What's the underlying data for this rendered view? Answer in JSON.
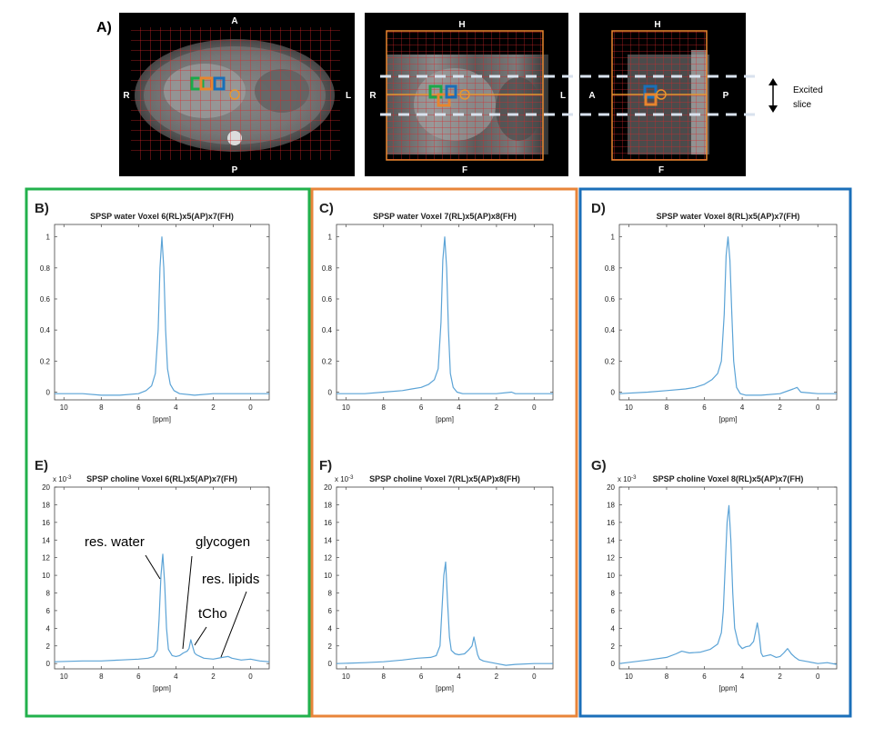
{
  "mri": {
    "panel_label": "A)",
    "axial": {
      "top": "A",
      "bottom": "P",
      "left": "R",
      "right": "L"
    },
    "coronal": {
      "top": "H",
      "bottom": "F",
      "left": "R",
      "right": "L"
    },
    "sagittal": {
      "top": "H",
      "bottom": "F",
      "left": "A",
      "right": "P"
    },
    "excited_slice_label_1": "Excited",
    "excited_slice_label_2": "slice",
    "voxel_colors": {
      "green": "#1aaa4a",
      "orange": "#e8852e",
      "blue": "#1a6fb8"
    }
  },
  "frame_colors": {
    "left": "#22b14c",
    "middle": "#e8853a",
    "right": "#1b6fb9"
  },
  "line_color": "#5ba3d6",
  "annotations": {
    "res_water": "res. water",
    "glycogen": "glycogen",
    "res_lipids": "res. lipids",
    "tcho": "tCho"
  },
  "chart_data": [
    {
      "panel": "B)",
      "type": "line",
      "title": "SPSP water Voxel 6(RL)x5(AP)x7(FH)",
      "xlabel": "[ppm]",
      "ylabel": "",
      "y_scale_note": "",
      "xlim": [
        10.5,
        -1
      ],
      "ylim": [
        -0.05,
        1.08
      ],
      "x_reversed": true,
      "xticks": [
        10,
        8,
        6,
        4,
        2,
        0
      ],
      "xtick_labels": [
        "10",
        "8",
        "6",
        "4",
        "2",
        "0"
      ],
      "yticks": [
        0,
        0.2,
        0.4,
        0.6,
        0.8,
        1
      ],
      "ytick_labels": [
        "0",
        "0.2",
        "0.4",
        "0.6",
        "0.8",
        "1"
      ],
      "series": [
        {
          "x": [
            10.5,
            9,
            8,
            7,
            6,
            5.6,
            5.3,
            5.1,
            4.95,
            4.85,
            4.75,
            4.65,
            4.55,
            4.45,
            4.3,
            4.1,
            3.8,
            3,
            2,
            1,
            0,
            -1
          ],
          "y": [
            -0.01,
            -0.01,
            -0.02,
            -0.02,
            -0.01,
            0.01,
            0.04,
            0.12,
            0.4,
            0.8,
            1.0,
            0.8,
            0.4,
            0.15,
            0.05,
            0.01,
            -0.01,
            -0.02,
            -0.01,
            -0.01,
            -0.01,
            -0.01
          ]
        }
      ]
    },
    {
      "panel": "C)",
      "type": "line",
      "title": "SPSP water Voxel 7(RL)x5(AP)x8(FH)",
      "xlabel": "[ppm]",
      "ylabel": "",
      "y_scale_note": "",
      "xlim": [
        10.5,
        -1
      ],
      "ylim": [
        -0.05,
        1.08
      ],
      "x_reversed": true,
      "xticks": [
        10,
        8,
        6,
        4,
        2,
        0
      ],
      "xtick_labels": [
        "10",
        "8",
        "6",
        "4",
        "2",
        "0"
      ],
      "yticks": [
        0,
        0.2,
        0.4,
        0.6,
        0.8,
        1
      ],
      "ytick_labels": [
        "0",
        "0.2",
        "0.4",
        "0.6",
        "0.8",
        "1"
      ],
      "series": [
        {
          "x": [
            10.5,
            9,
            8,
            7,
            6.5,
            6,
            5.6,
            5.3,
            5.1,
            4.95,
            4.85,
            4.75,
            4.65,
            4.55,
            4.45,
            4.3,
            4.1,
            3.8,
            3,
            2,
            1.2,
            1,
            0,
            -1
          ],
          "y": [
            -0.01,
            -0.01,
            0,
            0.01,
            0.02,
            0.03,
            0.05,
            0.08,
            0.15,
            0.45,
            0.85,
            1.0,
            0.8,
            0.4,
            0.12,
            0.03,
            0.0,
            -0.01,
            -0.01,
            -0.01,
            0.0,
            -0.01,
            -0.01,
            -0.01
          ]
        }
      ]
    },
    {
      "panel": "D)",
      "type": "line",
      "title": "SPSP water Voxel 8(RL)x5(AP)x7(FH)",
      "xlabel": "[ppm]",
      "ylabel": "",
      "y_scale_note": "",
      "xlim": [
        10.5,
        -1
      ],
      "ylim": [
        -0.05,
        1.08
      ],
      "x_reversed": true,
      "xticks": [
        10,
        8,
        6,
        4,
        2,
        0
      ],
      "xtick_labels": [
        "10",
        "8",
        "6",
        "4",
        "2",
        "0"
      ],
      "yticks": [
        0,
        0.2,
        0.4,
        0.6,
        0.8,
        1
      ],
      "ytick_labels": [
        "0",
        "0.2",
        "0.4",
        "0.6",
        "0.8",
        "1"
      ],
      "series": [
        {
          "x": [
            10.5,
            9,
            8,
            7,
            6.5,
            6,
            5.6,
            5.3,
            5.1,
            4.95,
            4.85,
            4.75,
            4.65,
            4.55,
            4.45,
            4.3,
            4.1,
            3.8,
            3,
            2,
            1.3,
            1.1,
            0.9,
            0,
            -1
          ],
          "y": [
            -0.01,
            0,
            0.01,
            0.02,
            0.03,
            0.05,
            0.08,
            0.12,
            0.2,
            0.5,
            0.88,
            1.0,
            0.85,
            0.5,
            0.2,
            0.03,
            -0.01,
            -0.02,
            -0.02,
            -0.01,
            0.02,
            0.03,
            0.0,
            -0.01,
            -0.01
          ]
        }
      ]
    },
    {
      "panel": "E)",
      "type": "line",
      "title": "SPSP choline Voxel 6(RL)x5(AP)x7(FH)",
      "xlabel": "[ppm]",
      "ylabel": "",
      "y_scale_note": "x 10^-3",
      "xlim": [
        10.5,
        -1
      ],
      "ylim": [
        -0.6,
        20
      ],
      "x_reversed": true,
      "xticks": [
        10,
        8,
        6,
        4,
        2,
        0
      ],
      "xtick_labels": [
        "10",
        "8",
        "6",
        "4",
        "2",
        "0"
      ],
      "yticks": [
        0,
        2,
        4,
        6,
        8,
        10,
        12,
        14,
        16,
        18,
        20
      ],
      "ytick_labels": [
        "0",
        "2",
        "4",
        "6",
        "8",
        "10",
        "12",
        "14",
        "16",
        "18",
        "20"
      ],
      "series": [
        {
          "x": [
            10.5,
            9,
            8,
            7,
            6,
            5.5,
            5.2,
            5.0,
            4.9,
            4.8,
            4.7,
            4.6,
            4.5,
            4.4,
            4.2,
            4.0,
            3.8,
            3.6,
            3.4,
            3.3,
            3.2,
            3.1,
            3.0,
            2.9,
            2.7,
            2.5,
            2,
            1.5,
            1.2,
            1,
            0.5,
            0,
            -0.5,
            -1
          ],
          "y": [
            0.2,
            0.3,
            0.3,
            0.4,
            0.5,
            0.6,
            0.8,
            1.5,
            5,
            10,
            12.4,
            9,
            4,
            1.6,
            0.9,
            0.8,
            0.9,
            1.2,
            1.4,
            1.7,
            2.7,
            1.9,
            1.2,
            1.0,
            0.8,
            0.6,
            0.5,
            0.7,
            0.8,
            0.6,
            0.4,
            0.5,
            0.3,
            0.2
          ]
        }
      ]
    },
    {
      "panel": "F)",
      "type": "line",
      "title": "SPSP choline Voxel 7(RL)x5(AP)x8(FH)",
      "xlabel": "[ppm]",
      "ylabel": "",
      "y_scale_note": "x 10^-3",
      "xlim": [
        10.5,
        -1
      ],
      "ylim": [
        -0.6,
        20
      ],
      "x_reversed": true,
      "xticks": [
        10,
        8,
        6,
        4,
        2,
        0
      ],
      "xtick_labels": [
        "10",
        "8",
        "6",
        "4",
        "2",
        "0"
      ],
      "yticks": [
        0,
        2,
        4,
        6,
        8,
        10,
        12,
        14,
        16,
        18,
        20
      ],
      "ytick_labels": [
        "0",
        "2",
        "4",
        "6",
        "8",
        "10",
        "12",
        "14",
        "16",
        "18",
        "20"
      ],
      "series": [
        {
          "x": [
            10.5,
            9,
            8,
            7,
            6.2,
            5.5,
            5.2,
            5.0,
            4.9,
            4.8,
            4.7,
            4.6,
            4.5,
            4.4,
            4.2,
            4.0,
            3.7,
            3.5,
            3.3,
            3.2,
            3.1,
            3.0,
            2.9,
            2.7,
            2.5,
            2,
            1.5,
            1,
            0,
            -1
          ],
          "y": [
            0,
            0.1,
            0.2,
            0.4,
            0.6,
            0.7,
            0.9,
            2,
            6,
            10,
            11.5,
            7,
            3,
            1.5,
            1.1,
            1.0,
            1.1,
            1.5,
            2.0,
            3.0,
            2.0,
            1.0,
            0.5,
            0.3,
            0.2,
            0.0,
            -0.2,
            -0.1,
            0.0,
            0.0
          ]
        }
      ]
    },
    {
      "panel": "G)",
      "type": "line",
      "title": "SPSP choline Voxel 8(RL)x5(AP)x7(FH)",
      "xlabel": "[ppm]",
      "ylabel": "",
      "y_scale_note": "x 10^-3",
      "xlim": [
        10.5,
        -1
      ],
      "ylim": [
        -0.6,
        20
      ],
      "x_reversed": true,
      "xticks": [
        10,
        8,
        6,
        4,
        2,
        0
      ],
      "xtick_labels": [
        "10",
        "8",
        "6",
        "4",
        "2",
        "0"
      ],
      "yticks": [
        0,
        2,
        4,
        6,
        8,
        10,
        12,
        14,
        16,
        18,
        20
      ],
      "ytick_labels": [
        "0",
        "2",
        "4",
        "6",
        "8",
        "10",
        "12",
        "14",
        "16",
        "18",
        "20"
      ],
      "series": [
        {
          "x": [
            10.5,
            9,
            8,
            7.5,
            7.2,
            6.8,
            6.2,
            5.7,
            5.3,
            5.1,
            5.0,
            4.9,
            4.8,
            4.7,
            4.6,
            4.5,
            4.4,
            4.2,
            4.0,
            3.8,
            3.6,
            3.4,
            3.3,
            3.2,
            3.1,
            3.0,
            2.9,
            2.7,
            2.5,
            2.2,
            2.0,
            1.8,
            1.6,
            1.4,
            1.2,
            1,
            0.5,
            0,
            -0.5,
            -1
          ],
          "y": [
            0.0,
            0.4,
            0.7,
            1.1,
            1.4,
            1.2,
            1.3,
            1.6,
            2.2,
            3.5,
            6,
            11,
            16,
            17.9,
            14,
            8,
            4,
            2.2,
            1.7,
            1.9,
            2.0,
            2.5,
            3.5,
            4.6,
            3.2,
            1.2,
            0.8,
            0.9,
            1.0,
            0.7,
            0.8,
            1.2,
            1.7,
            1.1,
            0.7,
            0.4,
            0.2,
            0.0,
            0.1,
            -0.1
          ]
        }
      ]
    }
  ]
}
